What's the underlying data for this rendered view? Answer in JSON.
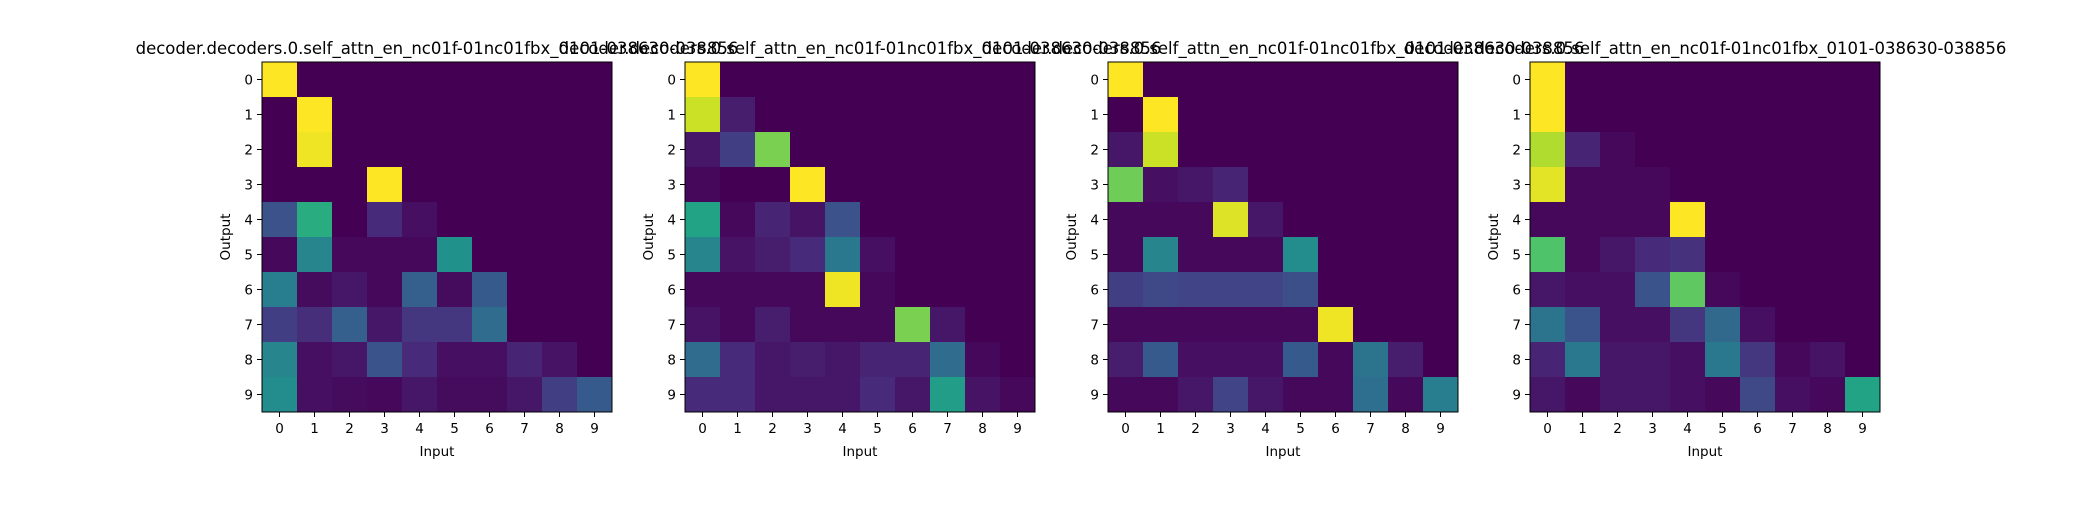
{
  "chart_data": [
    {
      "type": "heatmap",
      "title": "decoder.decoders.0.self_attn_en_nc01f-01nc01fbx_0101-038630-038856",
      "xlabel": "Input",
      "ylabel": "Output",
      "x_ticks": [
        "0",
        "1",
        "2",
        "3",
        "4",
        "5",
        "6",
        "7",
        "8",
        "9"
      ],
      "y_ticks": [
        "0",
        "1",
        "2",
        "3",
        "4",
        "5",
        "6",
        "7",
        "8",
        "9"
      ],
      "colormap": "viridis",
      "vmin": 0,
      "vmax": 1,
      "values": [
        [
          1.0,
          0,
          0,
          0,
          0,
          0,
          0,
          0,
          0,
          0
        ],
        [
          0,
          1.0,
          0,
          0,
          0,
          0,
          0,
          0,
          0,
          0
        ],
        [
          0,
          0.98,
          0,
          0,
          0,
          0,
          0,
          0,
          0,
          0
        ],
        [
          0,
          0,
          0,
          1.0,
          0,
          0,
          0,
          0,
          0,
          0
        ],
        [
          0.25,
          0.62,
          0,
          0.12,
          0.04,
          0,
          0,
          0,
          0,
          0
        ],
        [
          0.02,
          0.45,
          0.02,
          0.02,
          0.02,
          0.5,
          0,
          0,
          0,
          0
        ],
        [
          0.42,
          0.03,
          0.06,
          0.02,
          0.3,
          0.03,
          0.28,
          0,
          0,
          0
        ],
        [
          0.18,
          0.13,
          0.3,
          0.06,
          0.16,
          0.16,
          0.35,
          0,
          0,
          0
        ],
        [
          0.45,
          0.04,
          0.06,
          0.26,
          0.12,
          0.04,
          0.04,
          0.1,
          0.05,
          0
        ],
        [
          0.48,
          0.04,
          0.03,
          0.02,
          0.06,
          0.03,
          0.03,
          0.06,
          0.18,
          0.28
        ]
      ]
    },
    {
      "type": "heatmap",
      "title": "decoder.decoders.0.self_attn_en_nc01f-01nc01fbx_0101-038630-038856",
      "xlabel": "Input",
      "ylabel": "Output",
      "x_ticks": [
        "0",
        "1",
        "2",
        "3",
        "4",
        "5",
        "6",
        "7",
        "8",
        "9"
      ],
      "y_ticks": [
        "0",
        "1",
        "2",
        "3",
        "4",
        "5",
        "6",
        "7",
        "8",
        "9"
      ],
      "colormap": "viridis",
      "vmin": 0,
      "vmax": 1,
      "values": [
        [
          1.0,
          0,
          0,
          0,
          0,
          0,
          0,
          0,
          0,
          0
        ],
        [
          0.92,
          0.08,
          0,
          0,
          0,
          0,
          0,
          0,
          0,
          0
        ],
        [
          0.06,
          0.18,
          0.8,
          0,
          0,
          0,
          0,
          0,
          0,
          0
        ],
        [
          0.02,
          0,
          0,
          1.0,
          0,
          0,
          0,
          0,
          0,
          0
        ],
        [
          0.58,
          0.02,
          0.1,
          0.05,
          0.25,
          0,
          0,
          0,
          0,
          0
        ],
        [
          0.45,
          0.05,
          0.08,
          0.12,
          0.4,
          0.04,
          0,
          0,
          0,
          0
        ],
        [
          0.02,
          0.02,
          0.02,
          0.02,
          0.98,
          0.02,
          0,
          0,
          0,
          0
        ],
        [
          0.05,
          0.02,
          0.08,
          0.02,
          0.02,
          0.02,
          0.8,
          0.06,
          0,
          0
        ],
        [
          0.35,
          0.12,
          0.06,
          0.08,
          0.06,
          0.1,
          0.1,
          0.35,
          0.02,
          0
        ],
        [
          0.12,
          0.12,
          0.06,
          0.06,
          0.06,
          0.12,
          0.06,
          0.55,
          0.05,
          0.02
        ]
      ]
    },
    {
      "type": "heatmap",
      "title": "decoder.decoders.0.self_attn_en_nc01f-01nc01fbx_0101-038630-038856",
      "xlabel": "Input",
      "ylabel": "Output",
      "x_ticks": [
        "0",
        "1",
        "2",
        "3",
        "4",
        "5",
        "6",
        "7",
        "8",
        "9"
      ],
      "y_ticks": [
        "0",
        "1",
        "2",
        "3",
        "4",
        "5",
        "6",
        "7",
        "8",
        "9"
      ],
      "colormap": "viridis",
      "vmin": 0,
      "vmax": 1,
      "values": [
        [
          1.0,
          0,
          0,
          0,
          0,
          0,
          0,
          0,
          0,
          0
        ],
        [
          0,
          1.0,
          0,
          0,
          0,
          0,
          0,
          0,
          0,
          0
        ],
        [
          0.06,
          0.92,
          0,
          0,
          0,
          0,
          0,
          0,
          0,
          0
        ],
        [
          0.78,
          0.04,
          0.06,
          0.1,
          0,
          0,
          0,
          0,
          0,
          0
        ],
        [
          0.02,
          0.02,
          0.02,
          0.95,
          0.06,
          0,
          0,
          0,
          0,
          0
        ],
        [
          0.02,
          0.45,
          0.02,
          0.02,
          0.02,
          0.48,
          0,
          0,
          0,
          0
        ],
        [
          0.18,
          0.22,
          0.2,
          0.2,
          0.2,
          0.24,
          0,
          0,
          0,
          0
        ],
        [
          0.02,
          0.02,
          0.02,
          0.02,
          0.02,
          0.02,
          0.98,
          0,
          0,
          0
        ],
        [
          0.08,
          0.28,
          0.04,
          0.04,
          0.04,
          0.28,
          0.02,
          0.38,
          0.08,
          0
        ],
        [
          0.02,
          0.02,
          0.06,
          0.2,
          0.06,
          0.02,
          0.02,
          0.36,
          0.02,
          0.42
        ]
      ]
    },
    {
      "type": "heatmap",
      "title": "decoder.decoders.0.self_attn_en_nc01f-01nc01fbx_0101-038630-038856",
      "xlabel": "Input",
      "ylabel": "Output",
      "x_ticks": [
        "0",
        "1",
        "2",
        "3",
        "4",
        "5",
        "6",
        "7",
        "8",
        "9"
      ],
      "y_ticks": [
        "0",
        "1",
        "2",
        "3",
        "4",
        "5",
        "6",
        "7",
        "8",
        "9"
      ],
      "colormap": "viridis",
      "vmin": 0,
      "vmax": 1,
      "values": [
        [
          1.0,
          0,
          0,
          0,
          0,
          0,
          0,
          0,
          0,
          0
        ],
        [
          1.0,
          0,
          0,
          0,
          0,
          0,
          0,
          0,
          0,
          0
        ],
        [
          0.88,
          0.1,
          0.02,
          0,
          0,
          0,
          0,
          0,
          0,
          0
        ],
        [
          0.96,
          0.02,
          0.02,
          0.02,
          0,
          0,
          0,
          0,
          0,
          0
        ],
        [
          0.02,
          0.02,
          0.02,
          0.02,
          1.0,
          0,
          0,
          0,
          0,
          0
        ],
        [
          0.72,
          0.02,
          0.06,
          0.12,
          0.14,
          0,
          0,
          0,
          0,
          0
        ],
        [
          0.06,
          0.04,
          0.04,
          0.26,
          0.75,
          0.02,
          0,
          0,
          0,
          0
        ],
        [
          0.38,
          0.26,
          0.04,
          0.04,
          0.16,
          0.34,
          0.04,
          0,
          0,
          0
        ],
        [
          0.1,
          0.4,
          0.06,
          0.06,
          0.04,
          0.4,
          0.16,
          0.02,
          0.05,
          0
        ],
        [
          0.06,
          0.02,
          0.06,
          0.06,
          0.04,
          0.02,
          0.22,
          0.04,
          0.02,
          0.58
        ]
      ]
    }
  ]
}
